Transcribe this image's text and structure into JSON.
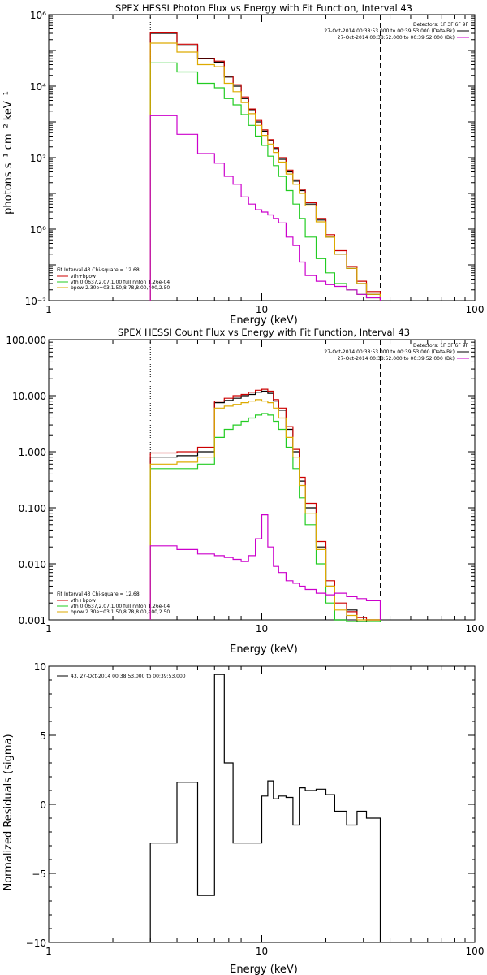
{
  "colors": {
    "data": "#000000",
    "total": "#cc0000",
    "vth": "#22cc22",
    "bpow": "#ddaa00",
    "bk": "#cc00cc"
  },
  "chart_data": [
    {
      "type": "line",
      "title": "SPEX HESSI Photon Flux vs Energy with Fit Function, Interval 43",
      "xlabel": "Energy (keV)",
      "ylabel": "photons s⁻¹ cm⁻² keV⁻¹",
      "xscale": "log",
      "yscale": "log",
      "xlim": [
        1,
        100
      ],
      "ylim": [
        0.01,
        1000000
      ],
      "xtick_labels": [
        "1",
        "10",
        "100"
      ],
      "ytick_labels": [
        "10⁻²",
        "10⁰",
        "10²",
        "10⁴",
        "10⁶"
      ],
      "vlines": [
        3,
        36
      ],
      "legend_top": [
        "Detectors: 1F 3F 6F 9F",
        "27-Oct-2014 00:38:53.000 to 00:39:53.000 (Data-Bk)",
        "27-Oct-2014 00:38:52.000 to 00:39:52.000 (Bk)"
      ],
      "legend_bottom": [
        "Fit Interval 43   Chi-square = 12.68",
        "vth+bpow",
        "vth 0.0637,2.07,1.00  full nhfon 1.26e-04",
        "bpow 2.30e+03,1.50,8.78,8.00,400,2.50"
      ],
      "edges": [
        3,
        4,
        5,
        6,
        6.667,
        7.333,
        8,
        8.667,
        9.333,
        10,
        10.667,
        11.333,
        12,
        13,
        14,
        15,
        16,
        18,
        20,
        22,
        25,
        28,
        31,
        36
      ],
      "series": [
        {
          "name": "(Data-Bk)",
          "values": [
            300000,
            140000,
            58000,
            47000,
            18000,
            10000,
            4500,
            2200,
            1000,
            550,
            300,
            180,
            90,
            40,
            22,
            12,
            5,
            1.8,
            0.6,
            0.2,
            0.08,
            0.03,
            0.015
          ]
        },
        {
          "name": "vth+bpow",
          "values": [
            310000,
            150000,
            60000,
            50000,
            19000,
            11000,
            5000,
            2300,
            1100,
            600,
            320,
            190,
            100,
            45,
            24,
            13,
            5.5,
            2,
            0.7,
            0.25,
            0.09,
            0.035,
            0.018
          ]
        },
        {
          "name": "vth",
          "values": [
            45000,
            25000,
            12000,
            9000,
            4500,
            3000,
            1600,
            800,
            400,
            220,
            110,
            60,
            30,
            12,
            5,
            2,
            0.6,
            0.15,
            0.06,
            0.03,
            0.02,
            0.015,
            0.012
          ]
        },
        {
          "name": "bpow",
          "values": [
            160000,
            90000,
            40000,
            35000,
            12000,
            7000,
            3500,
            1700,
            800,
            420,
            240,
            140,
            75,
            35,
            18,
            10,
            4.5,
            1.6,
            0.6,
            0.2,
            0.08,
            0.03,
            0.015
          ]
        },
        {
          "name": "(Bk)",
          "values": [
            1500,
            450,
            130,
            70,
            30,
            18,
            8,
            5,
            3.5,
            3,
            2.5,
            2,
            1.5,
            0.6,
            0.35,
            0.12,
            0.05,
            0.035,
            0.028,
            0.025,
            0.02,
            0.015,
            0.012
          ]
        }
      ]
    },
    {
      "type": "line",
      "title": "SPEX HESSI Count Flux vs Energy with Fit Function, Interval 43",
      "xlabel": "Energy (keV)",
      "ylabel": "",
      "xscale": "log",
      "yscale": "log",
      "xlim": [
        1,
        100
      ],
      "ylim": [
        0.001,
        100
      ],
      "xtick_labels": [
        "1",
        "10",
        "100"
      ],
      "ytick_labels": [
        "0.001",
        "0.010",
        "0.100",
        "1.000",
        "10.000",
        "100.000"
      ],
      "vlines": [
        3,
        36
      ],
      "legend_top": [
        "Detectors: 1F 3F 6F 9F",
        "27-Oct-2014 00:38:53.000 to 00:39:53.000 (Data-Bk)",
        "27-Oct-2014 00:38:52.000 to 00:39:52.000 (Bk)"
      ],
      "legend_bottom": [
        "Fit Interval 43   Chi-square = 12.68",
        "vth+bpow",
        "vth 0.0637,2.07,1.00  full nhfon 1.26e-04",
        "bpow 2.30e+03,1.50,8.78,8.00,400,2.50"
      ],
      "edges": [
        3,
        4,
        5,
        6,
        6.667,
        7.333,
        8,
        8.667,
        9.333,
        10,
        10.667,
        11.333,
        12,
        13,
        14,
        15,
        16,
        18,
        20,
        22,
        25,
        28,
        31,
        36
      ],
      "series": [
        {
          "name": "(Data-Bk)",
          "values": [
            0.8,
            0.85,
            1.0,
            7.5,
            8.2,
            9.0,
            10.0,
            10.5,
            11.5,
            12.0,
            11.0,
            8.0,
            5.5,
            2.5,
            1.0,
            0.3,
            0.1,
            0.02,
            0.004,
            0.001,
            0.0015,
            0.0008,
            0.001
          ]
        },
        {
          "name": "vth+bpow",
          "values": [
            0.95,
            1.0,
            1.2,
            8.0,
            9.0,
            10.0,
            10.5,
            11.5,
            12.5,
            13.0,
            12.0,
            8.5,
            6.0,
            2.8,
            1.1,
            0.35,
            0.12,
            0.025,
            0.005,
            0.002,
            0.0014,
            0.0011,
            0.001
          ]
        },
        {
          "name": "vth",
          "values": [
            0.5,
            0.5,
            0.6,
            1.8,
            2.5,
            3.0,
            3.5,
            4.0,
            4.5,
            4.8,
            4.5,
            3.5,
            2.5,
            1.2,
            0.5,
            0.15,
            0.05,
            0.01,
            0.002,
            0.001,
            0.0009,
            0.0008,
            0.0008
          ]
        },
        {
          "name": "bpow",
          "values": [
            0.6,
            0.65,
            0.8,
            6.0,
            6.5,
            7.0,
            7.5,
            8.0,
            8.5,
            8.0,
            7.5,
            6.0,
            4.0,
            1.8,
            0.8,
            0.25,
            0.08,
            0.018,
            0.004,
            0.0015,
            0.0012,
            0.001,
            0.001
          ]
        },
        {
          "name": "(Bk)",
          "values": [
            0.021,
            0.018,
            0.015,
            0.014,
            0.013,
            0.012,
            0.011,
            0.014,
            0.028,
            0.075,
            0.02,
            0.009,
            0.007,
            0.005,
            0.0045,
            0.004,
            0.0035,
            0.003,
            0.0028,
            0.003,
            0.0026,
            0.0024,
            0.0022
          ]
        }
      ]
    },
    {
      "type": "line",
      "title": "",
      "xlabel": "Energy (keV)",
      "ylabel": "Normalized Residuals (sigma)",
      "xscale": "log",
      "xlim": [
        1,
        100
      ],
      "ylim": [
        -10,
        10
      ],
      "xtick_labels": [
        "1",
        "10",
        "100"
      ],
      "ytick_labels": [
        "−10",
        "−5",
        "0",
        "5",
        "10"
      ],
      "legend": "43, 27-Oct-2014 00:38:53.000 to 00:39:53.000",
      "edges": [
        3,
        4,
        5,
        6,
        6.667,
        7.333,
        8,
        8.667,
        9.333,
        10,
        10.667,
        11.333,
        12,
        13,
        14,
        15,
        16,
        18,
        20,
        22,
        25,
        28,
        31,
        36
      ],
      "series": [
        {
          "name": "",
          "values": [
            -2.8,
            1.6,
            -6.6,
            9.4,
            3.0,
            -2.8,
            -2.8,
            -2.8,
            -2.8,
            0.6,
            1.7,
            0.4,
            0.6,
            0.5,
            -1.5,
            1.2,
            1.0,
            1.1,
            0.7,
            -0.5,
            -1.5,
            -0.5,
            -1.0
          ]
        }
      ]
    }
  ]
}
